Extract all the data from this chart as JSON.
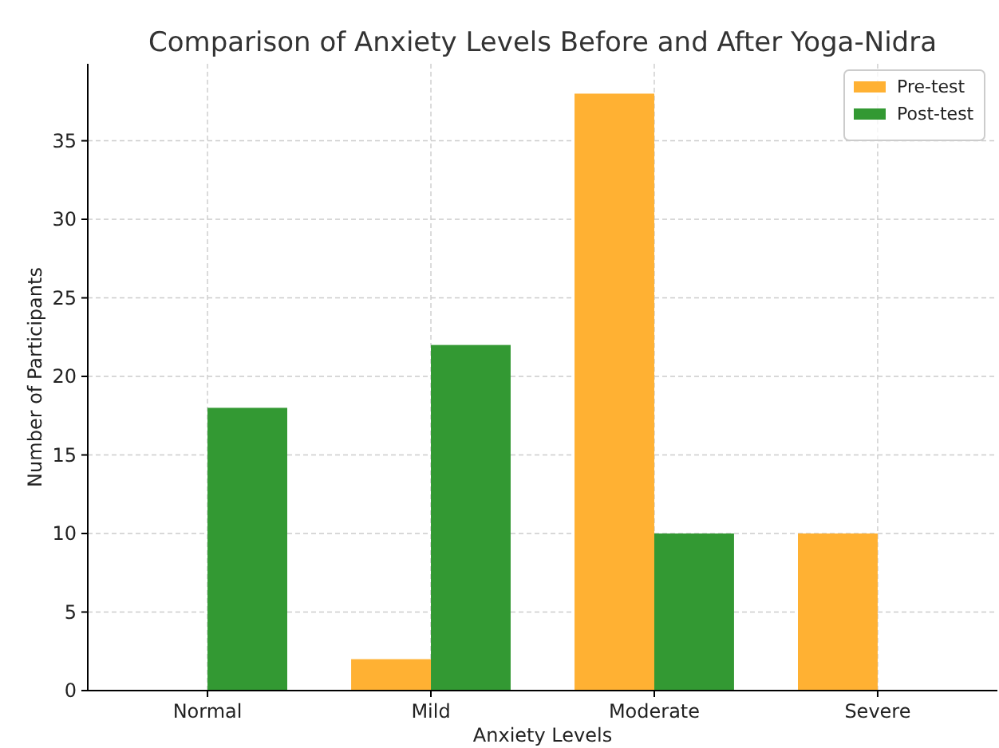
{
  "chart_data": {
    "type": "bar",
    "title": "Comparison of Anxiety Levels Before and After Yoga-Nidra",
    "xlabel": "Anxiety Levels",
    "ylabel": "Number of Participants",
    "categories": [
      "Normal",
      "Mild",
      "Moderate",
      "Severe"
    ],
    "series": [
      {
        "name": "Pre-test",
        "color": "#ffb133",
        "values": [
          0,
          2,
          38,
          10
        ]
      },
      {
        "name": "Post-test",
        "color": "#339933",
        "values": [
          18,
          22,
          10,
          0
        ]
      }
    ],
    "ylim": [
      0,
      39.9
    ],
    "yticks": [
      0,
      5,
      10,
      15,
      20,
      25,
      30,
      35
    ],
    "grid": true,
    "legend": "top right"
  }
}
